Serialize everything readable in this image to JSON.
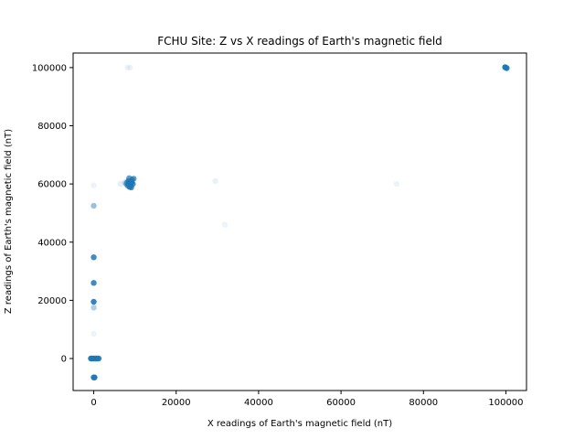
{
  "chart_data": {
    "type": "scatter",
    "title": "FCHU Site: Z vs X readings of Earth's magnetic field",
    "xlabel": "X readings of Earth's magnetic field (nT)",
    "ylabel": "Z readings of Earth's magnetic field (nT)",
    "xlim": [
      -5000,
      105000
    ],
    "ylim": [
      -11000,
      105000
    ],
    "xticks": [
      0,
      20000,
      40000,
      60000,
      80000,
      100000
    ],
    "yticks": [
      0,
      20000,
      40000,
      60000,
      80000,
      100000
    ],
    "xtick_labels": [
      "0",
      "20000",
      "40000",
      "60000",
      "80000",
      "100000"
    ],
    "ytick_labels": [
      "0",
      "20000",
      "40000",
      "60000",
      "80000",
      "100000"
    ],
    "grid": false,
    "marker_color": "#1f77b4",
    "series": [
      {
        "name": "Z vs X",
        "points": [
          {
            "x": 100000,
            "y": 100000,
            "alpha": 0.9
          },
          {
            "x": 100200,
            "y": 99800,
            "alpha": 0.9
          },
          {
            "x": 99800,
            "y": 100150,
            "alpha": 0.9
          },
          {
            "x": 8200,
            "y": 100000,
            "alpha": 0.08
          },
          {
            "x": 8800,
            "y": 100000,
            "alpha": 0.08
          },
          {
            "x": 7600,
            "y": 60500,
            "alpha": 0.25
          },
          {
            "x": 7900,
            "y": 60000,
            "alpha": 0.5
          },
          {
            "x": 8200,
            "y": 59500,
            "alpha": 0.7
          },
          {
            "x": 8400,
            "y": 61000,
            "alpha": 0.8
          },
          {
            "x": 8500,
            "y": 60000,
            "alpha": 0.9
          },
          {
            "x": 8700,
            "y": 59000,
            "alpha": 0.9
          },
          {
            "x": 8800,
            "y": 60800,
            "alpha": 0.9
          },
          {
            "x": 9000,
            "y": 60200,
            "alpha": 0.9
          },
          {
            "x": 9100,
            "y": 58800,
            "alpha": 0.8
          },
          {
            "x": 9300,
            "y": 61500,
            "alpha": 0.8
          },
          {
            "x": 9500,
            "y": 60000,
            "alpha": 0.8
          },
          {
            "x": 9700,
            "y": 61800,
            "alpha": 0.7
          },
          {
            "x": 8600,
            "y": 62000,
            "alpha": 0.7
          },
          {
            "x": 8100,
            "y": 60500,
            "alpha": 0.6
          },
          {
            "x": 8900,
            "y": 59500,
            "alpha": 0.9
          },
          {
            "x": 9200,
            "y": 60600,
            "alpha": 0.9
          },
          {
            "x": 6500,
            "y": 60000,
            "alpha": 0.12
          },
          {
            "x": 29500,
            "y": 61000,
            "alpha": 0.1
          },
          {
            "x": 73500,
            "y": 60000,
            "alpha": 0.08
          },
          {
            "x": 31800,
            "y": 46000,
            "alpha": 0.08
          },
          {
            "x": 0,
            "y": 59500,
            "alpha": 0.08
          },
          {
            "x": 0,
            "y": 52500,
            "alpha": 0.45
          },
          {
            "x": 0,
            "y": 34800,
            "alpha": 0.85
          },
          {
            "x": 0,
            "y": 26000,
            "alpha": 0.85
          },
          {
            "x": 0,
            "y": 19500,
            "alpha": 0.9
          },
          {
            "x": 0,
            "y": 17500,
            "alpha": 0.35
          },
          {
            "x": 0,
            "y": 8500,
            "alpha": 0.08
          },
          {
            "x": -400,
            "y": 0,
            "alpha": 0.9
          },
          {
            "x": 0,
            "y": 0,
            "alpha": 0.9
          },
          {
            "x": 400,
            "y": 0,
            "alpha": 0.9
          },
          {
            "x": 800,
            "y": 0,
            "alpha": 0.9
          },
          {
            "x": 1200,
            "y": 0,
            "alpha": 0.9
          },
          {
            "x": -700,
            "y": 0,
            "alpha": 0.9
          },
          {
            "x": 0,
            "y": -6500,
            "alpha": 0.9
          },
          {
            "x": 200,
            "y": -6500,
            "alpha": 0.9
          }
        ]
      }
    ]
  }
}
